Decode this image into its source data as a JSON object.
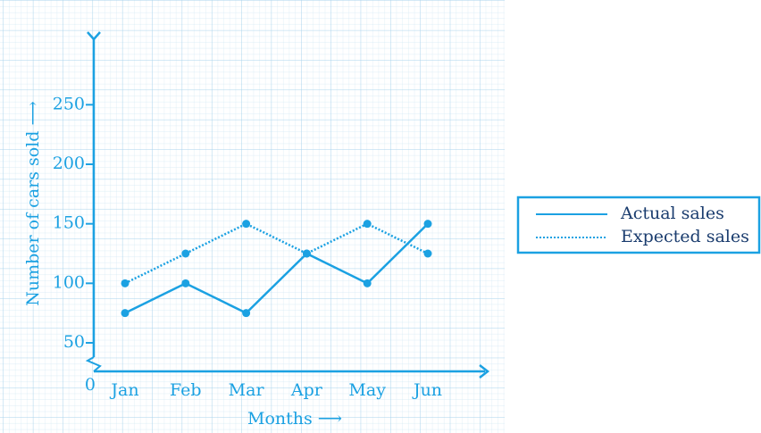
{
  "chart_data": {
    "type": "line",
    "xlabel": "Months ⟶",
    "ylabel": "Number of cars sold ⟶",
    "origin_label": "0",
    "categories": [
      "Jan",
      "Feb",
      "Mar",
      "Apr",
      "May",
      "Jun"
    ],
    "series": [
      {
        "name": "Actual sales",
        "color": "#1ba1e2",
        "style": "solid",
        "values": [
          75,
          100,
          75,
          125,
          100,
          150
        ]
      },
      {
        "name": "Expected sales",
        "color": "#1ba1e2",
        "style": "dotted",
        "values": [
          100,
          125,
          150,
          125,
          150,
          125
        ]
      }
    ],
    "ylim": [
      26,
      308
    ],
    "yticks": [
      50,
      100,
      150,
      200,
      250
    ]
  }
}
